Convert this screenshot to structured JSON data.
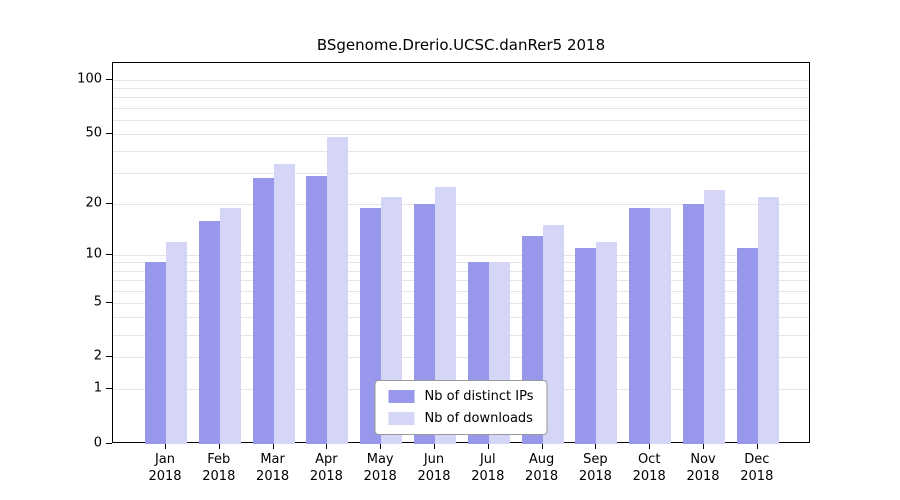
{
  "chart_data": {
    "type": "bar",
    "title": "BSgenome.Drerio.UCSC.danRer5 2018",
    "scale": "log1p",
    "grid": true,
    "categories": [
      "Jan",
      "Feb",
      "Mar",
      "Apr",
      "May",
      "Jun",
      "Jul",
      "Aug",
      "Sep",
      "Oct",
      "Nov",
      "Dec"
    ],
    "year": "2018",
    "series": [
      {
        "name": "Nb of distinct IPs",
        "color": "#9797ec",
        "values": [
          9,
          16,
          28,
          29,
          19,
          20,
          9,
          13,
          11,
          19,
          20,
          11
        ]
      },
      {
        "name": "Nb of downloads",
        "color": "#d5d5f7",
        "values": [
          12,
          19,
          34,
          48,
          22,
          25,
          9,
          15,
          12,
          19,
          24,
          22
        ]
      }
    ],
    "yticks": [
      100,
      50,
      20,
      10,
      5,
      2,
      1,
      0
    ],
    "gridlines": [
      1,
      2,
      3,
      4,
      5,
      6,
      7,
      8,
      9,
      10,
      20,
      30,
      40,
      50,
      60,
      70,
      80,
      90,
      100
    ],
    "ylim": [
      0,
      110
    ],
    "legend_position": "lower center"
  }
}
